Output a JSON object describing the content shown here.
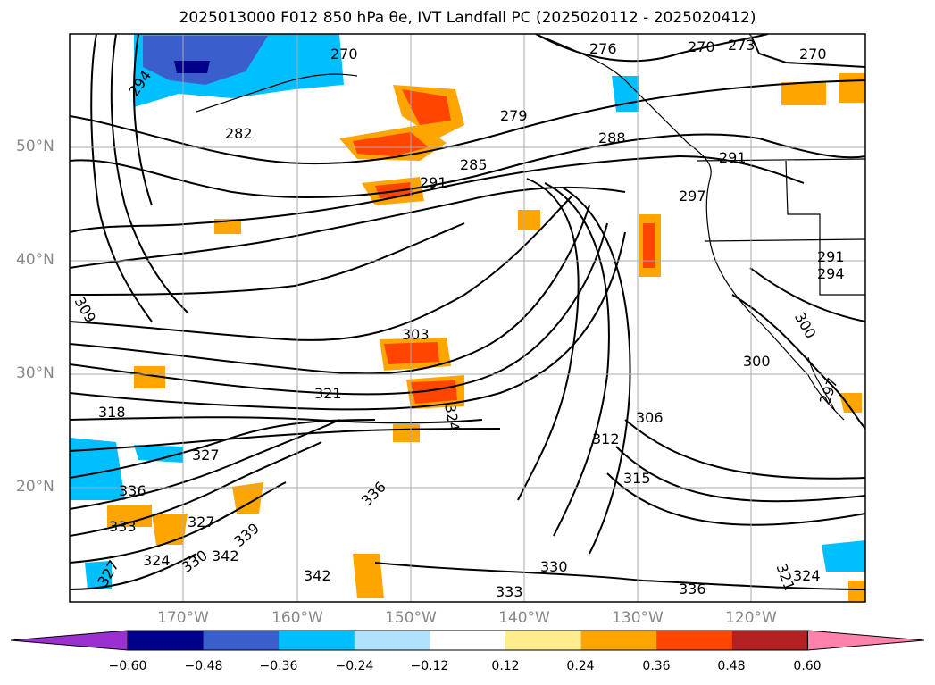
{
  "title": "2025013000 F012 850 hPa θe, IVT Landfall PC (2025020112 - 2025020412)",
  "map": {
    "lat_labels": [
      {
        "text": "50°N",
        "lat": 50
      },
      {
        "text": "40°N",
        "lat": 40
      },
      {
        "text": "30°N",
        "lat": 30
      },
      {
        "text": "20°N",
        "lat": 20
      }
    ],
    "lon_labels": [
      {
        "text": "170°W",
        "lon": -170
      },
      {
        "text": "160°W",
        "lon": -160
      },
      {
        "text": "150°W",
        "lon": -150
      },
      {
        "text": "140°W",
        "lon": -140
      },
      {
        "text": "130°W",
        "lon": -130
      },
      {
        "text": "120°W",
        "lon": -120
      }
    ],
    "contour_labels": [
      "294",
      "270",
      "273",
      "276",
      "270",
      "270",
      "279",
      "282",
      "285",
      "288",
      "291",
      "291",
      "297",
      "291",
      "294",
      "309",
      "303",
      "300",
      "300",
      "321",
      "324",
      "318",
      "327",
      "306",
      "312",
      "315",
      "336",
      "336",
      "333",
      "327",
      "339",
      "324",
      "330",
      "342",
      "342",
      "327",
      "330",
      "333",
      "336",
      "321",
      "324",
      "297"
    ]
  },
  "colorbar": {
    "ticks": [
      "−0.60",
      "−0.48",
      "−0.36",
      "−0.24",
      "−0.12",
      "0.12",
      "0.24",
      "0.36",
      "0.48",
      "0.60"
    ],
    "colors": [
      "#9b30d0",
      "#00008b",
      "#3a5fcd",
      "#00bfff",
      "#b0e2ff",
      "#ffffff",
      "#ffec8b",
      "#ffa500",
      "#ff4500",
      "#b22222",
      "#ff82ab"
    ]
  }
}
